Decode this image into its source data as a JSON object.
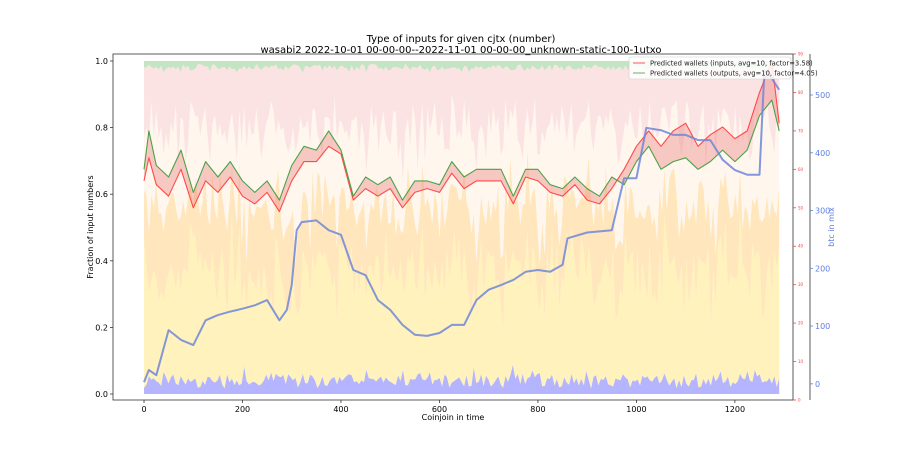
{
  "chart_data": {
    "type": "line",
    "title": "Type of inputs for given cjtx (number)",
    "subtitle": "wasabi2 2022-10-01 00-00-00--2022-11-01 00-00-00_unknown-static-100-1utxo",
    "xlabel": "Coinjoin in time",
    "ylabel": "Fraction of input numbers",
    "ylabel_right": "btc in mix",
    "xlim": [
      -63,
      1318
    ],
    "ylim": [
      -0.018,
      1.021
    ],
    "wallets_axis_lim": [
      0,
      90
    ],
    "btc_axis_lim": [
      -28,
      571
    ],
    "x_ticks": [
      "0",
      "200",
      "400",
      "600",
      "800",
      "1000",
      "1200"
    ],
    "x_tick_values": [
      0,
      200,
      400,
      600,
      800,
      1000,
      1200
    ],
    "y_ticks": [
      "0.0",
      "0.2",
      "0.4",
      "0.6",
      "0.8",
      "1.0"
    ],
    "y_tick_values": [
      0,
      0.2,
      0.4,
      0.6,
      0.8,
      1.0
    ],
    "wallets_ticks": [
      "0",
      "10",
      "20",
      "30",
      "40",
      "50",
      "60",
      "70",
      "80",
      "90"
    ],
    "wallets_tick_values": [
      0,
      10,
      20,
      30,
      40,
      50,
      60,
      70,
      80,
      90
    ],
    "btc_ticks": [
      "0",
      "100",
      "200",
      "300",
      "400",
      "500"
    ],
    "btc_tick_values": [
      0,
      100,
      200,
      300,
      400,
      500
    ],
    "legend": {
      "placement": "top-right",
      "entries": [
        {
          "label": "Predicted wallets (inputs, avg=10, factor=3.58)",
          "color": "#ff4d4d"
        },
        {
          "label": "Predicted wallets (outputs, avg=10, factor=4.05)",
          "color": "#3a9a3a"
        }
      ]
    },
    "background_bands": [
      {
        "name": "bottom-blue",
        "color": "#a8a8ff",
        "mean_fraction": 0.04
      },
      {
        "name": "yellow",
        "color": "#fff0b0",
        "mean_fraction": 0.33
      },
      {
        "name": "orange",
        "color": "#ffe2b0",
        "mean_fraction": 0.2
      },
      {
        "name": "cream",
        "color": "#fff5ea",
        "mean_fraction": 0.23
      },
      {
        "name": "pink",
        "color": "#fbdede",
        "mean_fraction": 0.18
      },
      {
        "name": "green-top",
        "color": "#b8e0b8",
        "mean_fraction": 0.02
      }
    ],
    "series": [
      {
        "name": "Predicted wallets (outputs)",
        "axis": "wallets",
        "color": "#3a9a3a",
        "x": [
          0,
          10,
          25,
          50,
          75,
          100,
          125,
          150,
          175,
          200,
          225,
          250,
          275,
          300,
          325,
          350,
          375,
          400,
          425,
          450,
          475,
          500,
          525,
          550,
          575,
          600,
          625,
          650,
          675,
          700,
          725,
          750,
          775,
          800,
          825,
          850,
          875,
          900,
          925,
          950,
          975,
          1000,
          1025,
          1050,
          1075,
          1100,
          1125,
          1150,
          1175,
          1200,
          1225,
          1250,
          1275,
          1290
        ],
        "values": [
          60,
          70,
          61,
          58,
          65,
          54,
          62,
          58,
          62,
          57,
          54,
          57,
          52,
          61,
          66,
          65,
          70,
          65,
          53,
          58,
          56,
          58,
          52,
          57,
          57,
          56,
          62,
          58,
          60,
          60,
          60,
          53,
          60,
          60,
          56,
          55,
          58,
          55,
          53,
          58,
          56,
          62,
          66,
          60,
          62,
          63,
          60,
          62,
          65,
          62,
          65,
          74,
          78,
          70
        ]
      },
      {
        "name": "Predicted wallets (inputs)",
        "axis": "wallets",
        "color": "#ff3b3b",
        "x": [
          0,
          10,
          25,
          50,
          75,
          100,
          125,
          150,
          175,
          200,
          225,
          250,
          275,
          300,
          325,
          350,
          375,
          400,
          425,
          450,
          475,
          500,
          525,
          550,
          575,
          600,
          625,
          650,
          675,
          700,
          725,
          750,
          775,
          800,
          825,
          850,
          875,
          900,
          925,
          950,
          975,
          1000,
          1025,
          1050,
          1075,
          1100,
          1125,
          1150,
          1175,
          1200,
          1225,
          1250,
          1275,
          1290
        ],
        "values": [
          57,
          63,
          56,
          53,
          60,
          50,
          57,
          54,
          58,
          53,
          51,
          54,
          49,
          57,
          62,
          62,
          66,
          64,
          52,
          55,
          53,
          55,
          50,
          54,
          55,
          54,
          59,
          55,
          57,
          57,
          57,
          51,
          58,
          57,
          54,
          53,
          56,
          52,
          51,
          55,
          60,
          66,
          70,
          66,
          70,
          72,
          66,
          69,
          71,
          68,
          70,
          80,
          88,
          72
        ]
      },
      {
        "name": "btc in mix",
        "axis": "btc",
        "color": "#6f86d9",
        "x": [
          0,
          10,
          25,
          50,
          75,
          100,
          125,
          150,
          175,
          200,
          225,
          250,
          275,
          290,
          300,
          310,
          320,
          350,
          375,
          400,
          425,
          450,
          475,
          500,
          525,
          550,
          575,
          600,
          625,
          650,
          675,
          700,
          725,
          750,
          775,
          800,
          825,
          850,
          860,
          900,
          950,
          975,
          1000,
          1020,
          1050,
          1075,
          1100,
          1125,
          1150,
          1175,
          1200,
          1225,
          1250,
          1260,
          1275,
          1290
        ],
        "values": [
          3,
          24,
          15,
          93,
          76,
          67,
          110,
          119,
          125,
          130,
          136,
          145,
          110,
          128,
          171,
          266,
          280,
          283,
          266,
          258,
          197,
          188,
          145,
          128,
          102,
          85,
          83,
          88,
          102,
          102,
          145,
          163,
          171,
          180,
          194,
          197,
          194,
          206,
          252,
          262,
          266,
          356,
          356,
          443,
          439,
          431,
          431,
          422,
          422,
          388,
          370,
          362,
          362,
          543,
          529,
          509
        ]
      }
    ]
  }
}
